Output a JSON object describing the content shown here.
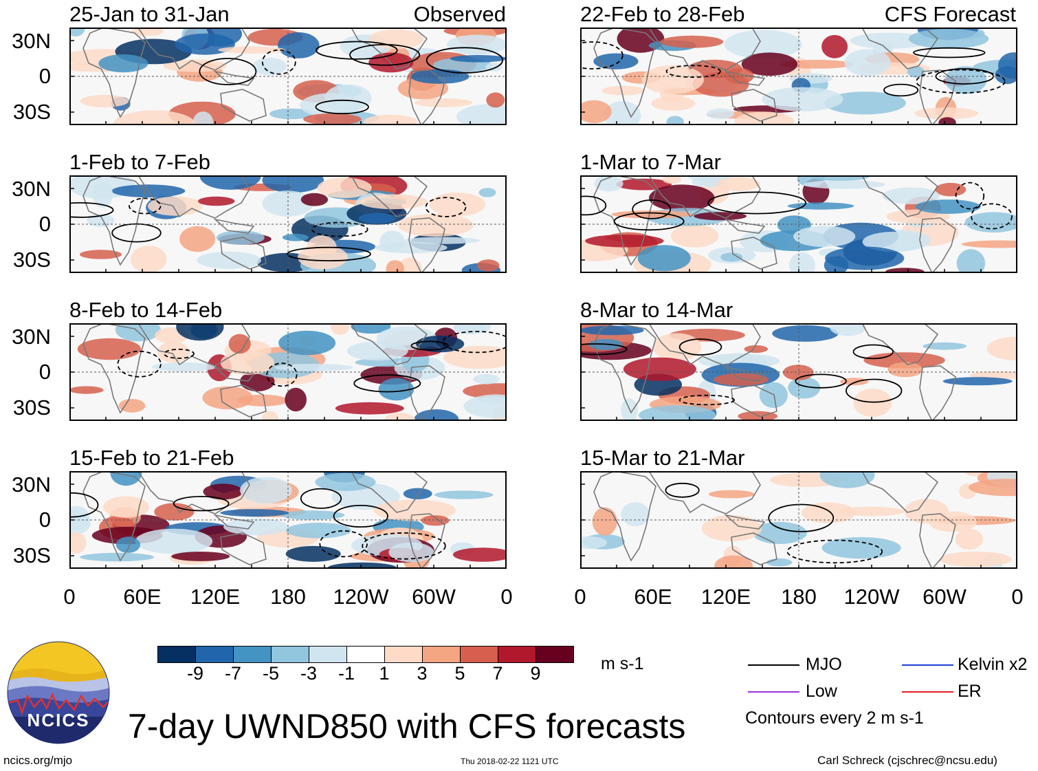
{
  "figure": {
    "title": "7-day UWND850 with CFS forecasts",
    "units": "m s-1",
    "website": "ncics.org/mjo",
    "timestamp": "Thu 2018-02-22 1121 UTC",
    "author": "Carl Schreck (cjschrec@ncsu.edu)",
    "contour_note": "Contours every 2 m s-1"
  },
  "columns": {
    "left_tag": "Observed",
    "right_tag": "CFS Forecast"
  },
  "axes": {
    "lat_labels": [
      "30N",
      "0",
      "30S"
    ],
    "lon_labels": [
      "0",
      "60E",
      "120E",
      "180",
      "120W",
      "60W",
      "0"
    ]
  },
  "panels": {
    "observed": [
      {
        "title": "25-Jan to 31-Jan"
      },
      {
        "title": "1-Feb to 7-Feb"
      },
      {
        "title": "8-Feb to 14-Feb"
      },
      {
        "title": "15-Feb to 21-Feb"
      }
    ],
    "forecast": [
      {
        "title": "22-Feb to 28-Feb"
      },
      {
        "title": "1-Mar to 7-Mar"
      },
      {
        "title": "8-Mar to 14-Mar"
      },
      {
        "title": "15-Mar to 21-Mar"
      }
    ]
  },
  "colorbar": {
    "ticks": [
      "-9",
      "-7",
      "-5",
      "-3",
      "-1",
      "1",
      "3",
      "5",
      "7",
      "9"
    ],
    "colors": [
      "#053061",
      "#2166ac",
      "#4393c3",
      "#92c5de",
      "#d1e5f0",
      "#ffffff",
      "#fddbc7",
      "#f4a582",
      "#d6604d",
      "#b2182b",
      "#67001f"
    ]
  },
  "legend": [
    {
      "label": "MJO",
      "color": "#000000"
    },
    {
      "label": "Kelvin x2",
      "color": "#1f3fd6"
    },
    {
      "label": "Low",
      "color": "#9b30e0"
    },
    {
      "label": "ER",
      "color": "#e02020"
    }
  ],
  "logo": {
    "text": "NCICS"
  }
}
